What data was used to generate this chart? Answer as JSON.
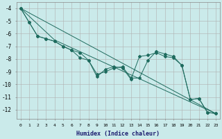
{
  "xlabel": "Humidex (Indice chaleur)",
  "background_color": "#caeaea",
  "grid_color": "#b0b0b0",
  "line_color": "#1e6b5e",
  "xlim": [
    -0.5,
    23.5
  ],
  "ylim": [
    -12.7,
    -3.5
  ],
  "yticks": [
    -4,
    -5,
    -6,
    -7,
    -8,
    -9,
    -10,
    -11,
    -12
  ],
  "xticks": [
    0,
    1,
    2,
    3,
    4,
    5,
    6,
    7,
    8,
    9,
    10,
    11,
    12,
    13,
    14,
    15,
    16,
    17,
    18,
    19,
    20,
    21,
    22,
    23
  ],
  "series1_x": [
    0,
    1,
    2,
    3,
    4,
    5,
    6,
    7,
    8,
    9,
    10,
    11,
    12,
    13,
    14,
    15,
    16,
    17,
    18,
    19,
    20,
    21,
    22,
    23
  ],
  "series1_y": [
    -4.0,
    -5.1,
    -6.2,
    -6.4,
    -6.6,
    -7.0,
    -7.3,
    -7.5,
    -8.1,
    -9.4,
    -8.8,
    -8.6,
    -8.7,
    -9.6,
    -7.8,
    -7.7,
    -7.5,
    -7.8,
    -7.9,
    -8.5,
    -11.2,
    -11.1,
    -12.2,
    -12.3
  ],
  "series2_x": [
    0,
    1,
    2,
    3,
    4,
    5,
    6,
    7,
    8,
    9,
    10,
    11,
    12,
    13,
    14,
    15,
    16,
    17,
    18,
    19,
    20,
    21,
    22,
    23
  ],
  "series2_y": [
    -4.0,
    -5.1,
    -6.2,
    -6.4,
    -6.6,
    -7.0,
    -7.3,
    -7.9,
    -8.1,
    -9.2,
    -9.0,
    -8.7,
    -8.6,
    -9.5,
    -9.5,
    -8.1,
    -7.4,
    -7.6,
    -7.8,
    -8.5,
    -11.2,
    -11.1,
    -12.2,
    -12.3
  ],
  "series3_x": [
    0,
    4,
    23
  ],
  "series3_y": [
    -4.0,
    -6.5,
    -12.3
  ],
  "series4_x": [
    0,
    23
  ],
  "series4_y": [
    -4.0,
    -12.3
  ]
}
